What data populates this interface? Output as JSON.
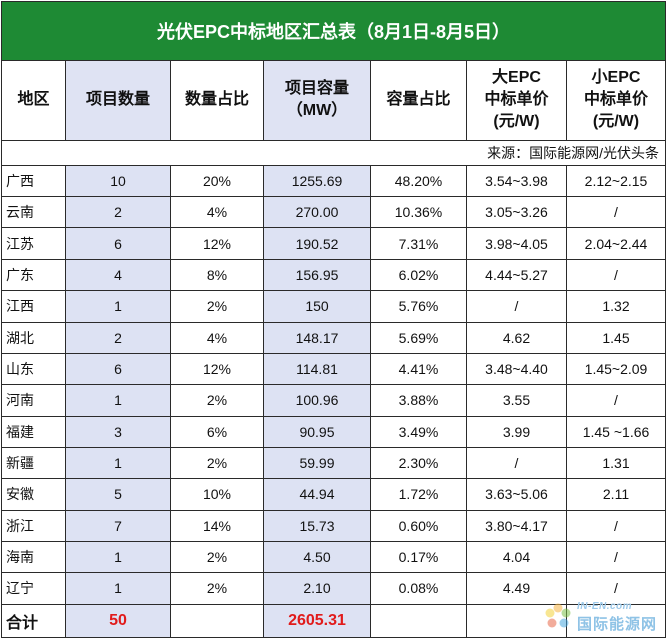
{
  "title": "光伏EPC中标地区汇总表（8月1日-8月5日）",
  "headers": {
    "region": "地区",
    "count": "项目数量",
    "count_pct": "数量占比",
    "capacity": [
      "项目容量",
      "（MW）"
    ],
    "cap_pct": "容量占比",
    "big_epc": [
      "大EPC",
      "中标单价",
      "(元/W)"
    ],
    "small_epc": [
      "小EPC",
      "中标单价",
      "(元/W)"
    ]
  },
  "source": "来源：国际能源网/光伏头条",
  "rows": [
    {
      "region": "广西",
      "count": "10",
      "count_pct": "20%",
      "capacity": "1255.69",
      "cap_pct": "48.20%",
      "big": "3.54~3.98",
      "small": "2.12~2.15"
    },
    {
      "region": "云南",
      "count": "2",
      "count_pct": "4%",
      "capacity": "270.00",
      "cap_pct": "10.36%",
      "big": "3.05~3.26",
      "small": "/"
    },
    {
      "region": "江苏",
      "count": "6",
      "count_pct": "12%",
      "capacity": "190.52",
      "cap_pct": "7.31%",
      "big": "3.98~4.05",
      "small": "2.04~2.44"
    },
    {
      "region": "广东",
      "count": "4",
      "count_pct": "8%",
      "capacity": "156.95",
      "cap_pct": "6.02%",
      "big": "4.44~5.27",
      "small": "/"
    },
    {
      "region": "江西",
      "count": "1",
      "count_pct": "2%",
      "capacity": "150",
      "cap_pct": "5.76%",
      "big": "/",
      "small": "1.32"
    },
    {
      "region": "湖北",
      "count": "2",
      "count_pct": "4%",
      "capacity": "148.17",
      "cap_pct": "5.69%",
      "big": "4.62",
      "small": "1.45"
    },
    {
      "region": "山东",
      "count": "6",
      "count_pct": "12%",
      "capacity": "114.81",
      "cap_pct": "4.41%",
      "big": "3.48~4.40",
      "small": "1.45~2.09"
    },
    {
      "region": "河南",
      "count": "1",
      "count_pct": "2%",
      "capacity": "100.96",
      "cap_pct": "3.88%",
      "big": "3.55",
      "small": "/"
    },
    {
      "region": "福建",
      "count": "3",
      "count_pct": "6%",
      "capacity": "90.95",
      "cap_pct": "3.49%",
      "big": "3.99",
      "small": "1.45 ~1.66"
    },
    {
      "region": "新疆",
      "count": "1",
      "count_pct": "2%",
      "capacity": "59.99",
      "cap_pct": "2.30%",
      "big": "/",
      "small": "1.31"
    },
    {
      "region": "安徽",
      "count": "5",
      "count_pct": "10%",
      "capacity": "44.94",
      "cap_pct": "1.72%",
      "big": "3.63~5.06",
      "small": "2.11"
    },
    {
      "region": "浙江",
      "count": "7",
      "count_pct": "14%",
      "capacity": "15.73",
      "cap_pct": "0.60%",
      "big": "3.80~4.17",
      "small": "/"
    },
    {
      "region": "海南",
      "count": "1",
      "count_pct": "2%",
      "capacity": "4.50",
      "cap_pct": "0.17%",
      "big": "4.04",
      "small": "/"
    },
    {
      "region": "辽宁",
      "count": "1",
      "count_pct": "2%",
      "capacity": "2.10",
      "cap_pct": "0.08%",
      "big": "4.49",
      "small": "/"
    }
  ],
  "total": {
    "label": "合计",
    "count": "50",
    "capacity": "2605.31"
  },
  "watermark": {
    "en": "IN-EN.com",
    "cn": "国际能源网",
    "icon": "sunflower-logo-icon"
  },
  "colors": {
    "title_bg": "#1e8a34",
    "highlight": "#dde2f3",
    "total_red": "#e11b1b"
  }
}
